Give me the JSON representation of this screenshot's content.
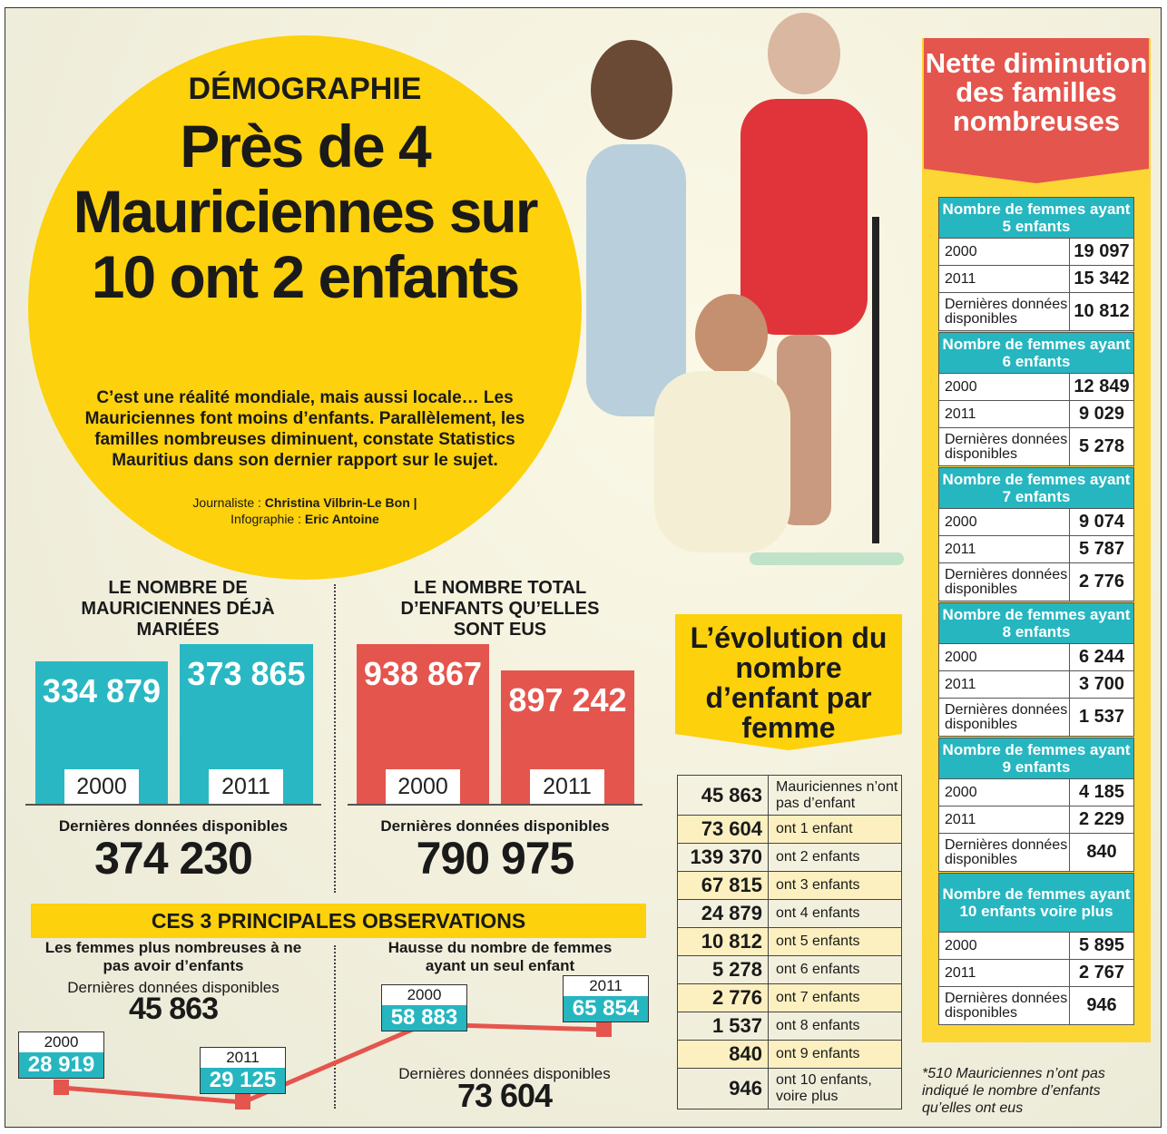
{
  "header": {
    "kicker": "DÉMOGRAPHIE",
    "title": "Près de 4 Mauriciennes sur 10 ont 2 enfants",
    "lead": "C’est une réalité mondiale, mais aussi locale… Les Mauriciennes font moins d’enfants. Parallèlement, les familles nombreuses diminuent, constate Statistics Mauritius dans son dernier rapport sur le sujet.",
    "journalist_label": "Journaliste : ",
    "journalist": "Christina Vilbrin-Le Bon |",
    "infographic_label": "Infographie : ",
    "infographic": "Eric Antoine"
  },
  "married": {
    "title": "LE NOMBRE DE MAURICIENNES DÉJÀ MARIÉES",
    "bars": [
      {
        "year": "2000",
        "value": "334 879"
      },
      {
        "year": "2011",
        "value": "373 865"
      }
    ],
    "latest_label": "Dernières données disponibles",
    "latest": "374 230"
  },
  "children": {
    "title": "LE NOMBRE TOTAL D’ENFANTS QU’ELLES SONT EUS",
    "bars": [
      {
        "year": "2000",
        "value": "938 867"
      },
      {
        "year": "2011",
        "value": "897 242"
      }
    ],
    "latest_label": "Dernières données disponibles",
    "latest": "790 975"
  },
  "observations": {
    "title": "CES 3 PRINCIPALES OBSERVATIONS",
    "no_child": {
      "title": "Les femmes plus nombreuses à ne pas avoir d’enfants",
      "latest_label": "Dernières données disponibles",
      "latest": "45 863",
      "points": [
        {
          "year": "2000",
          "value": "28 919"
        },
        {
          "year": "2011",
          "value": "29 125"
        }
      ]
    },
    "one_child": {
      "title": "Hausse du nombre de femmes ayant un seul enfant",
      "latest_label": "Dernières données disponibles",
      "latest": "73 604",
      "points": [
        {
          "year": "2000",
          "value": "58 883"
        },
        {
          "year": "2011",
          "value": "65 854"
        }
      ]
    }
  },
  "evolution": {
    "title": "L’évolution du nombre d’enfant par femme",
    "rows": [
      {
        "n": "45 863",
        "t": "Mauriciennes n’ont pas d’enfant"
      },
      {
        "n": "73 604",
        "t": "ont 1 enfant"
      },
      {
        "n": "139 370",
        "t": "ont 2 enfants"
      },
      {
        "n": "67 815",
        "t": "ont 3 enfants"
      },
      {
        "n": "24 879",
        "t": "ont 4 enfants"
      },
      {
        "n": "10 812",
        "t": "ont 5 enfants"
      },
      {
        "n": "5 278",
        "t": "ont 6 enfants"
      },
      {
        "n": "2 776",
        "t": "ont 7 enfants"
      },
      {
        "n": "1 537",
        "t": "ont 8 enfants"
      },
      {
        "n": "840",
        "t": "ont 9 enfants"
      },
      {
        "n": "946",
        "t": "ont 10 enfants, voire plus"
      }
    ]
  },
  "right": {
    "title": "Nette diminution des familles nombreuses",
    "groups": [
      {
        "h": "Nombre de femmes ayant 5 enfants",
        "rows": [
          [
            "2000",
            "19 097"
          ],
          [
            "2011",
            "15 342"
          ],
          [
            "Dernières données disponibles",
            "10 812"
          ]
        ]
      },
      {
        "h": "Nombre de femmes ayant 6 enfants",
        "rows": [
          [
            "2000",
            "12 849"
          ],
          [
            "2011",
            "9 029"
          ],
          [
            "Dernières données disponibles",
            "5 278"
          ]
        ]
      },
      {
        "h": "Nombre de femmes ayant 7 enfants",
        "rows": [
          [
            "2000",
            "9 074"
          ],
          [
            "2011",
            "5 787"
          ],
          [
            "Dernières données disponibles",
            "2 776"
          ]
        ]
      },
      {
        "h": "Nombre de femmes ayant 8 enfants",
        "rows": [
          [
            "2000",
            "6 244"
          ],
          [
            "2011",
            "3 700"
          ],
          [
            "Dernières données disponibles",
            "1 537"
          ]
        ]
      },
      {
        "h": "Nombre de femmes ayant 9 enfants",
        "rows": [
          [
            "2000",
            "4 185"
          ],
          [
            "2011",
            "2 229"
          ],
          [
            "Dernières données disponibles",
            "840"
          ]
        ]
      },
      {
        "h": "Nombre de femmes ayant 10 enfants voire plus",
        "rows": [
          [
            "2000",
            "5 895"
          ],
          [
            "2011",
            "2 767"
          ],
          [
            "Dernières données disponibles",
            "946"
          ]
        ]
      }
    ]
  },
  "footnote": "*510 Mauriciennes n’ont pas indiqué le nombre d’enfants qu’elles ont eus",
  "colors": {
    "yellow": "#fdd10b",
    "teal": "#26b6c0",
    "red": "#e4554d"
  }
}
